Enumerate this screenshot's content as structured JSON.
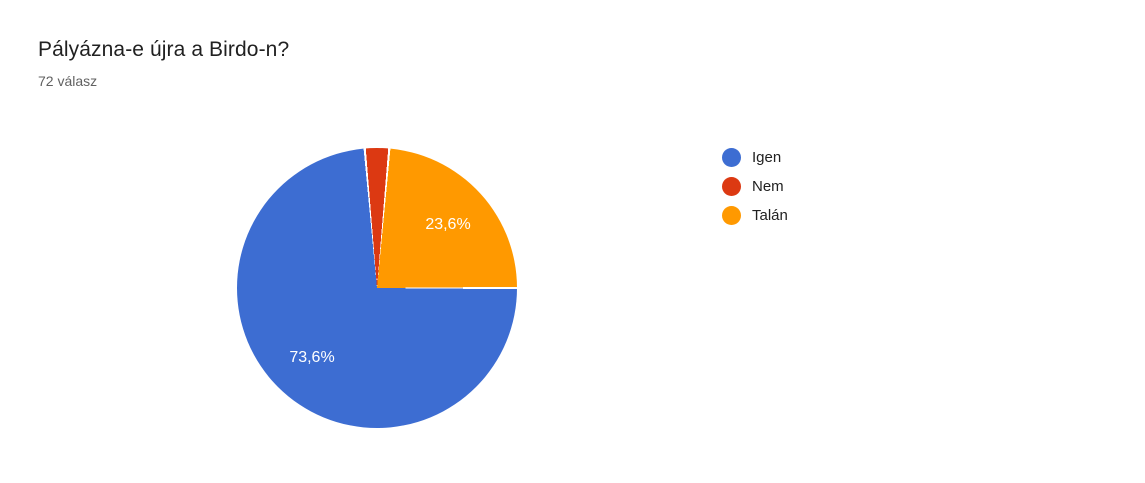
{
  "header": {
    "title": "Pályázna-e újra a Birdo-n?",
    "subtitle": "72 válasz"
  },
  "chart_data": {
    "type": "pie",
    "title": "Pályázna-e újra a Birdo-n?",
    "subtitle": "72 válasz",
    "response_count": 72,
    "categories": [
      "Igen",
      "Nem",
      "Talán"
    ],
    "values": [
      73.6,
      2.8,
      23.6
    ],
    "unit": "percent",
    "slice_labels": [
      "73,6%",
      "",
      "23,6%"
    ],
    "colors": [
      "#3d6dd2",
      "#dc3912",
      "#ff9900"
    ],
    "slice_label_color": "#ffffff",
    "legend_position": "right",
    "start_angle_deg": 90,
    "direction": "clockwise",
    "background": "#ffffff"
  },
  "legend": {
    "items": [
      {
        "label": "Igen",
        "color": "#3d6dd2"
      },
      {
        "label": "Nem",
        "color": "#dc3912"
      },
      {
        "label": "Talán",
        "color": "#ff9900"
      }
    ]
  }
}
